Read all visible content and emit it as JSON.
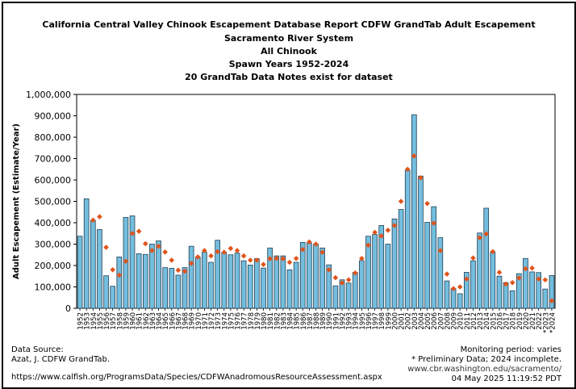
{
  "header": {
    "title": "California Central Valley Chinook Escapement Database Report CDFW GrandTab Adult Escapement",
    "subtitle1": "Sacramento River System",
    "subtitle2": "All Chinook",
    "subtitle3": "Spawn Years 1952-2024",
    "subtitle4": "20 GrandTab Data Notes exist for dataset"
  },
  "footer": {
    "source_label": "Data Source:",
    "source_value": "Azat, J. CDFW GrandTab.",
    "source_url": "https://www.calfish.org/ProgramsData/Species/CDFWAnadromousResourceAssessment.aspx",
    "monitoring": "Monitoring period: varies",
    "preliminary": "* Preliminary Data; 2024 incomplete.",
    "site_url": "www.cbr.washington.edu/sacramento/",
    "timestamp": "04 May 2025 11:19:52 PDT"
  },
  "colors": {
    "bar_fill": "#74bede",
    "bar_stroke": "#1f3f55",
    "marker": "#e0541c"
  },
  "chart_data": {
    "type": "bar",
    "ylabel": "Adult Escapement (Estimate/Year)",
    "ylim": [
      0,
      1000000
    ],
    "yticks": [
      0,
      100000,
      200000,
      300000,
      400000,
      500000,
      600000,
      700000,
      800000,
      900000,
      1000000
    ],
    "ytick_labels": [
      "0",
      "100,000",
      "200,000",
      "300,000",
      "400,000",
      "500,000",
      "600,000",
      "700,000",
      "800,000",
      "900,000",
      "1,000,000"
    ],
    "categories": [
      "1952",
      "1953",
      "1954",
      "1955",
      "1956",
      "1957",
      "1958",
      "1959",
      "1960",
      "1961",
      "1962",
      "1963",
      "1964",
      "1965",
      "1966",
      "1967",
      "1968",
      "1969",
      "1970",
      "1971",
      "1972",
      "1973",
      "1974",
      "1975",
      "1976",
      "1977",
      "1978",
      "1979",
      "1980",
      "1981",
      "1982",
      "1983",
      "1984",
      "1985",
      "1986",
      "1987",
      "1988",
      "1989",
      "1990",
      "1991",
      "1992",
      "1993",
      "1994",
      "1995",
      "1996",
      "1997",
      "1998",
      "1999",
      "2000",
      "2001",
      "2002",
      "2003",
      "2004",
      "2005",
      "2006",
      "2007",
      "2008",
      "2009",
      "2010",
      "2011",
      "2012",
      "2013",
      "2014",
      "2015",
      "2016",
      "2017",
      "2018",
      "2019",
      "2020",
      "2021",
      "2022",
      "2023",
      "2024"
    ],
    "tick_labels": [
      "1952",
      "1953",
      "1954",
      "1955",
      "1956",
      "1957",
      "1958",
      "1959",
      "1960",
      "1961",
      "1962",
      "1963",
      "1964",
      "1965",
      "1966",
      "1967",
      "1968",
      "1969",
      "1970",
      "1971",
      "1972",
      "1973",
      "1974",
      "1975",
      "1976",
      "1977",
      "1978",
      "1979",
      "1980",
      "1981",
      "1982",
      "1983",
      "1984",
      "1985",
      "1986",
      "1987",
      "1988",
      "1989",
      "1990",
      "1991",
      "1992",
      "1993",
      "1994",
      "1995",
      "1996",
      "1997",
      "1998",
      "1999",
      "2000",
      "2001",
      "2002",
      "2003",
      "2004",
      "2005",
      "2006",
      "2007",
      "2008",
      "2009",
      "2010",
      "2011",
      "2012",
      "2013",
      "2014",
      "2015",
      "2016",
      "2017",
      "2018",
      "2019",
      "2020",
      "2021",
      "2022",
      "*2023",
      "*2024"
    ],
    "series": [
      {
        "type": "bar",
        "values": [
          337000,
          512000,
          410000,
          368000,
          152000,
          103000,
          240000,
          425000,
          432000,
          255000,
          252000,
          300000,
          315000,
          190000,
          187000,
          155000,
          190000,
          290000,
          240000,
          262000,
          215000,
          318000,
          262000,
          250000,
          258000,
          222000,
          202000,
          232000,
          188000,
          282000,
          245000,
          245000,
          180000,
          215000,
          308000,
          305000,
          300000,
          282000,
          203000,
          105000,
          133000,
          118000,
          168000,
          223000,
          337000,
          345000,
          387000,
          300000,
          418000,
          462000,
          645000,
          905000,
          618000,
          402000,
          475000,
          330000,
          128000,
          92000,
          68000,
          168000,
          222000,
          352000,
          468000,
          262000,
          150000,
          120000,
          82000,
          162000,
          233000,
          170000,
          167000,
          90000,
          153000
        ]
      },
      {
        "type": "scatter",
        "values": [
          null,
          null,
          412000,
          428000,
          285000,
          180000,
          155000,
          220000,
          350000,
          360000,
          302000,
          270000,
          290000,
          263000,
          225000,
          178000,
          173000,
          210000,
          240000,
          270000,
          245000,
          265000,
          262000,
          280000,
          270000,
          245000,
          225000,
          225000,
          205000,
          232000,
          233000,
          232000,
          215000,
          233000,
          275000,
          310000,
          300000,
          262000,
          180000,
          143000,
          119000,
          133000,
          165000,
          233000,
          295000,
          355000,
          338000,
          365000,
          387000,
          500000,
          650000,
          712000,
          610000,
          490000,
          398000,
          270000,
          160000,
          92000,
          100000,
          137000,
          235000,
          330000,
          348000,
          265000,
          168000,
          113000,
          120000,
          142000,
          185000,
          188000,
          137000,
          133000,
          35000
        ]
      }
    ]
  }
}
